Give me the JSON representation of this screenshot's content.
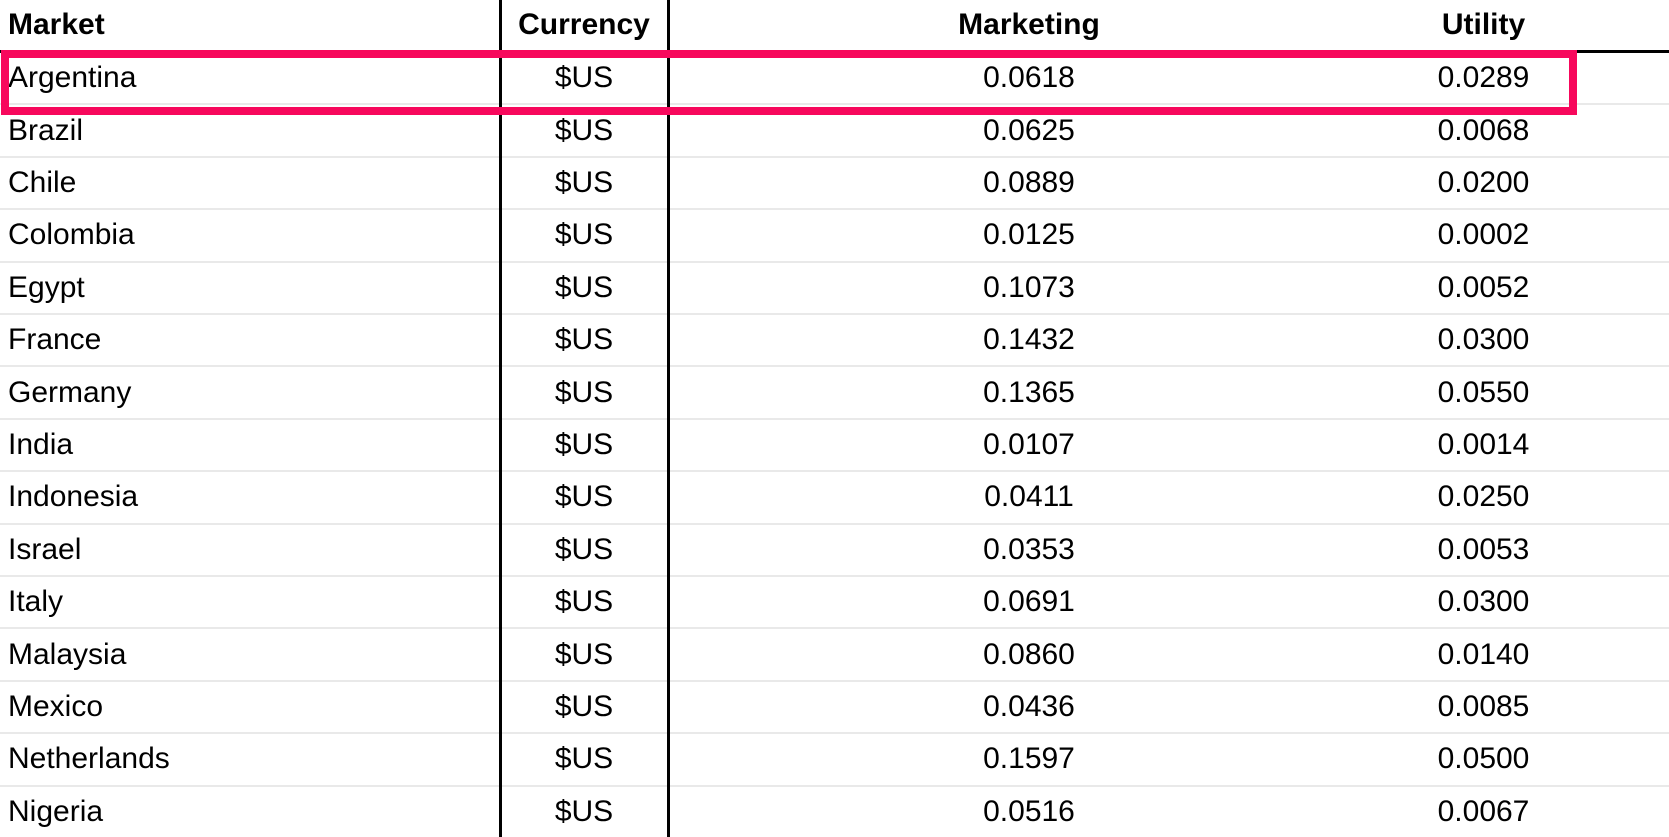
{
  "table": {
    "headers": {
      "market": "Market",
      "currency": "Currency",
      "marketing": "Marketing",
      "utility": "Utility"
    },
    "rows": [
      {
        "market": "Argentina",
        "currency": "$US",
        "marketing": "0.0618",
        "utility": "0.0289",
        "highlighted": true
      },
      {
        "market": "Brazil",
        "currency": "$US",
        "marketing": "0.0625",
        "utility": "0.0068",
        "highlighted": false
      },
      {
        "market": "Chile",
        "currency": "$US",
        "marketing": "0.0889",
        "utility": "0.0200",
        "highlighted": false
      },
      {
        "market": "Colombia",
        "currency": "$US",
        "marketing": "0.0125",
        "utility": "0.0002",
        "highlighted": false
      },
      {
        "market": "Egypt",
        "currency": "$US",
        "marketing": "0.1073",
        "utility": "0.0052",
        "highlighted": false
      },
      {
        "market": "France",
        "currency": "$US",
        "marketing": "0.1432",
        "utility": "0.0300",
        "highlighted": false
      },
      {
        "market": "Germany",
        "currency": "$US",
        "marketing": "0.1365",
        "utility": "0.0550",
        "highlighted": false
      },
      {
        "market": "India",
        "currency": "$US",
        "marketing": "0.0107",
        "utility": "0.0014",
        "highlighted": false
      },
      {
        "market": "Indonesia",
        "currency": "$US",
        "marketing": "0.0411",
        "utility": "0.0250",
        "highlighted": false
      },
      {
        "market": "Israel",
        "currency": "$US",
        "marketing": "0.0353",
        "utility": "0.0053",
        "highlighted": false
      },
      {
        "market": "Italy",
        "currency": "$US",
        "marketing": "0.0691",
        "utility": "0.0300",
        "highlighted": false
      },
      {
        "market": "Malaysia",
        "currency": "$US",
        "marketing": "0.0860",
        "utility": "0.0140",
        "highlighted": false
      },
      {
        "market": "Mexico",
        "currency": "$US",
        "marketing": "0.0436",
        "utility": "0.0085",
        "highlighted": false
      },
      {
        "market": "Netherlands",
        "currency": "$US",
        "marketing": "0.1597",
        "utility": "0.0500",
        "highlighted": false
      },
      {
        "market": "Nigeria",
        "currency": "$US",
        "marketing": "0.0516",
        "utility": "0.0067",
        "highlighted": false
      }
    ]
  },
  "highlight": {
    "target_row": "Argentina",
    "color": "#f7085c"
  },
  "colors": {
    "column_rule": "#000000",
    "row_separator": "#e9e9e9",
    "text": "#000000",
    "background": "#ffffff"
  }
}
